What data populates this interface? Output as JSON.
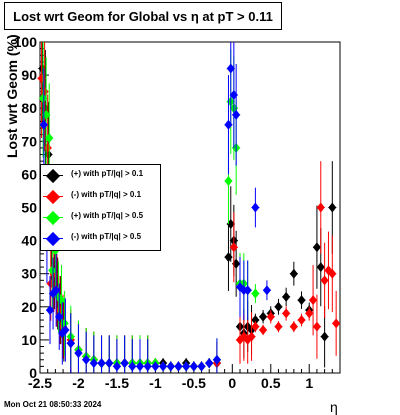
{
  "title": "Lost wrt Geom for Global vs   η at pT > 0.11",
  "ylabel": "Lost wrt Geom (%)",
  "xlabel": "η",
  "date": "Mon Oct 21 08:50:33 2024",
  "legend": [
    {
      "label": "(+) with pT/|q| > 0.1",
      "color": "#000000"
    },
    {
      "label": "(-) with pT/|q| > 0.1",
      "color": "#ff0000"
    },
    {
      "label": "(+) with pT/|q| > 0.5",
      "color": "#00ff00"
    },
    {
      "label": "(-) with pT/|q| > 0.5",
      "color": "#0000ff"
    }
  ],
  "chart_data": {
    "type": "scatter",
    "xlim": [
      -2.5,
      1.4
    ],
    "ylim": [
      0,
      100
    ],
    "xticks": [
      "-2.5",
      "-2",
      "-1.5",
      "-1",
      "-0.5",
      "0",
      "0.5",
      "1"
    ],
    "yticks": [
      "0",
      "10",
      "20",
      "30",
      "40",
      "50",
      "60",
      "70",
      "80",
      "90",
      "100"
    ],
    "series": [
      {
        "name": "(+) with pT/|q| > 0.1",
        "color": "#000000",
        "x": [
          -2.47,
          -2.43,
          -2.39,
          -2.35,
          -2.31,
          -2.27,
          -2.23,
          -2.19,
          -2.1,
          -2.0,
          -1.9,
          -1.8,
          -1.7,
          -1.6,
          -1.5,
          -1.4,
          -1.3,
          -1.2,
          -1.1,
          -1.0,
          -0.9,
          -0.8,
          -0.7,
          -0.6,
          -0.5,
          -0.4,
          -0.3,
          -0.2,
          -0.05,
          -0.02,
          0.02,
          0.05,
          0.1,
          0.15,
          0.2,
          0.25,
          0.3,
          0.4,
          0.5,
          0.6,
          0.7,
          0.8,
          0.9,
          1.0,
          1.1,
          1.15,
          1.2,
          1.3
        ],
        "y": [
          92,
          80,
          66,
          40,
          31,
          24,
          19,
          13,
          9,
          7,
          5,
          4,
          3,
          3,
          3,
          3,
          3,
          3,
          3,
          3,
          3,
          2,
          2,
          3,
          2,
          2,
          3,
          3,
          35,
          45,
          40,
          33,
          14,
          12,
          14,
          13,
          16,
          17,
          18,
          20,
          23,
          30,
          22,
          19,
          38,
          32,
          11,
          50
        ]
      },
      {
        "name": "(-) with pT/|q| > 0.1",
        "color": "#ff0000",
        "x": [
          -2.48,
          -2.44,
          -2.4,
          -2.36,
          -2.32,
          -2.28,
          -2.24,
          -2.2,
          -2.1,
          -2.0,
          -1.9,
          -1.8,
          -1.7,
          -1.6,
          -1.5,
          -1.4,
          -1.3,
          -1.2,
          -1.1,
          -1.0,
          -0.9,
          -0.8,
          -0.7,
          -0.6,
          -0.5,
          -0.4,
          -0.3,
          -0.2,
          0.02,
          0.1,
          0.15,
          0.2,
          0.25,
          0.3,
          0.4,
          0.5,
          0.6,
          0.7,
          0.8,
          0.9,
          1.0,
          1.05,
          1.1,
          1.15,
          1.2,
          1.25,
          1.3,
          1.35
        ],
        "y": [
          89,
          85,
          68,
          27,
          30,
          25,
          19,
          14,
          10,
          7,
          5,
          4,
          3,
          3,
          3,
          3,
          3,
          3,
          3,
          3,
          2,
          2,
          2,
          2,
          2,
          2,
          3,
          3,
          38,
          10,
          11,
          10,
          11,
          14,
          13,
          17,
          14,
          18,
          14,
          16,
          18,
          22,
          14,
          50,
          28,
          31,
          30,
          15
        ]
      },
      {
        "name": "(+) with pT/|q| > 0.5",
        "color": "#00ff00",
        "x": [
          -2.46,
          -2.42,
          -2.38,
          -2.34,
          -2.3,
          -2.26,
          -2.22,
          -2.18,
          -2.1,
          -2.0,
          -1.9,
          -1.8,
          -1.7,
          -1.6,
          -1.5,
          -1.4,
          -1.3,
          -1.2,
          -1.1,
          -1.0,
          -0.9,
          -0.8,
          -0.7,
          -0.6,
          -0.5,
          -0.4,
          -0.3,
          -0.2,
          -0.05,
          -0.02,
          0.02,
          0.05,
          0.1,
          0.15,
          0.2,
          0.3
        ],
        "y": [
          83,
          78,
          71,
          31,
          37,
          23,
          22,
          15,
          11,
          7,
          5,
          4,
          3,
          3,
          3,
          3,
          3,
          3,
          3,
          3,
          2,
          2,
          2,
          2,
          2,
          2,
          3,
          4,
          58,
          82,
          80,
          68,
          27,
          27,
          25,
          24
        ]
      },
      {
        "name": "(-) with pT/|q| > 0.5",
        "color": "#0000ff",
        "x": [
          -2.45,
          -2.41,
          -2.37,
          -2.33,
          -2.29,
          -2.25,
          -2.21,
          -2.17,
          -2.1,
          -2.0,
          -1.9,
          -1.8,
          -1.7,
          -1.6,
          -1.5,
          -1.4,
          -1.3,
          -1.2,
          -1.1,
          -1.0,
          -0.9,
          -0.8,
          -0.7,
          -0.6,
          -0.5,
          -0.4,
          -0.3,
          -0.2,
          -0.05,
          -0.02,
          0.02,
          0.05,
          0.1,
          0.15,
          0.2,
          0.3,
          0.45
        ],
        "y": [
          75,
          40,
          19,
          24,
          25,
          17,
          12,
          13,
          9,
          6,
          4,
          3,
          3,
          3,
          2,
          3,
          2,
          2,
          2,
          2,
          2,
          2,
          2,
          2,
          2,
          2,
          3,
          4,
          75,
          92,
          84,
          78,
          26,
          25,
          25,
          50,
          25
        ]
      }
    ]
  }
}
